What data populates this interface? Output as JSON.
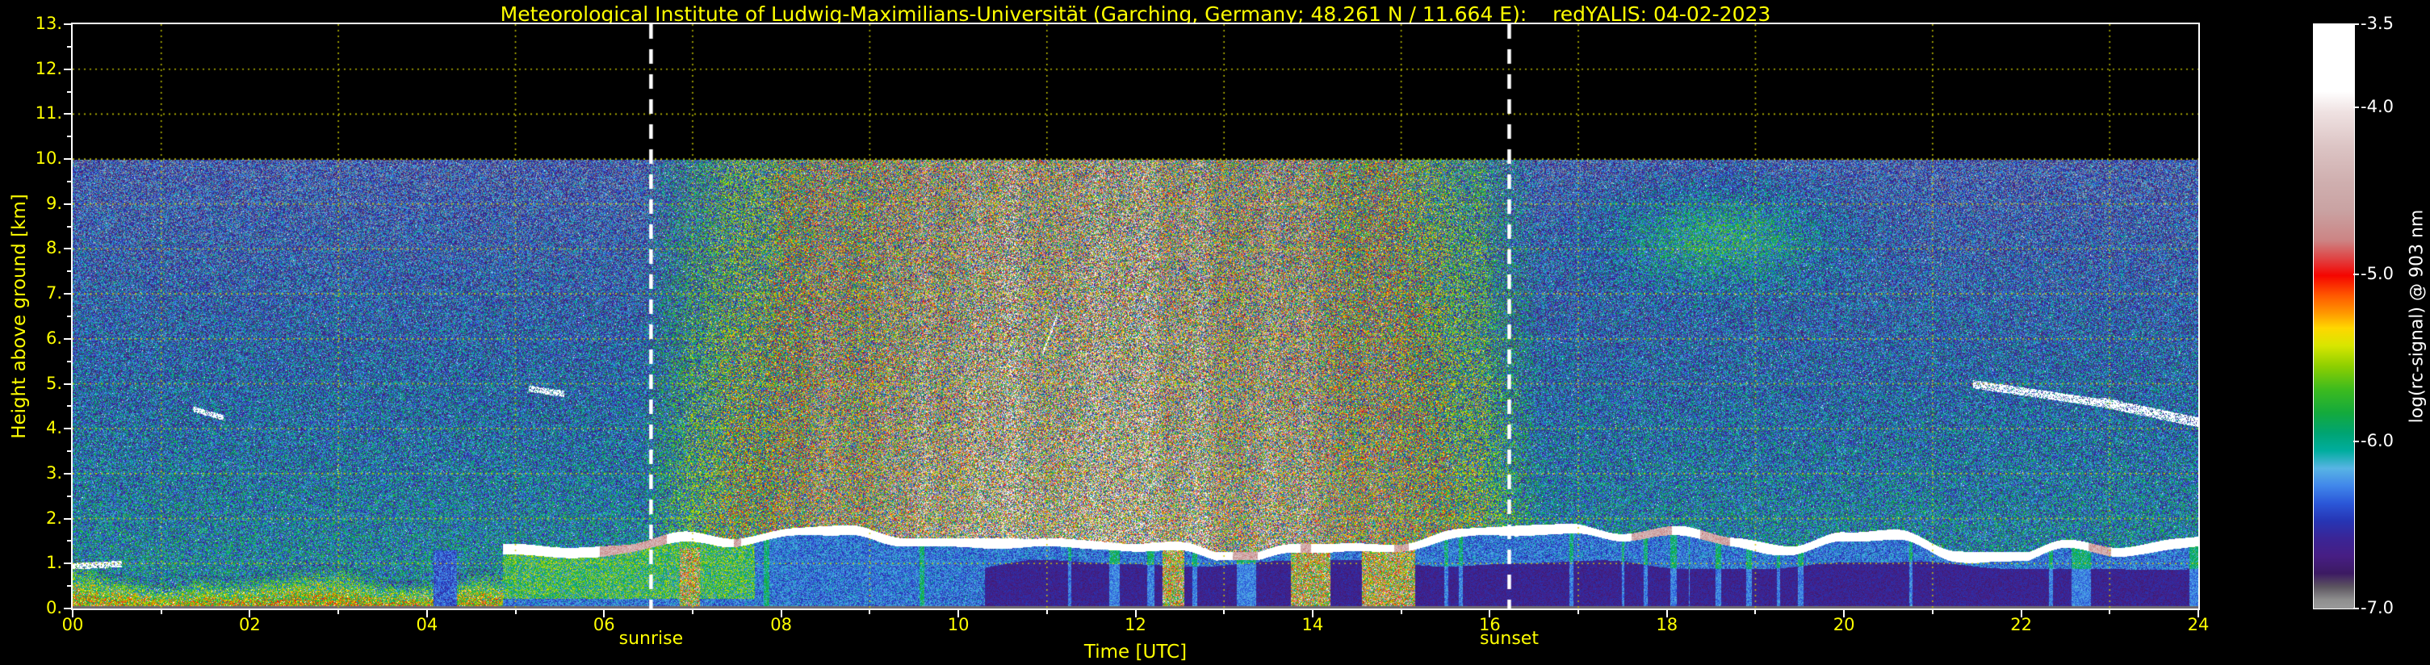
{
  "page": {
    "background": "#000000",
    "axis_color": "#ffffff",
    "label_color": "#ffff00"
  },
  "header": {
    "title": "Meteorological Institute of Ludwig-Maximilians-Universität (Garching, Germany; 48.261 N / 11.664 E):    redYALIS: 04-02-2023"
  },
  "chart_data": {
    "type": "heatmap",
    "title": "Meteorological Institute of Ludwig-Maximilians-Universität (Garching, Germany; 48.261 N / 11.664 E):    redYALIS: 04-02-2023",
    "xlabel": "Time [UTC]",
    "ylabel": "Height above ground [km]",
    "xlim": [
      0,
      24
    ],
    "ylim": [
      0,
      13
    ],
    "data_top_km": 10,
    "x_tick_hours": [
      0,
      2,
      4,
      6,
      8,
      10,
      12,
      14,
      16,
      18,
      20,
      22,
      24
    ],
    "x_tick_labels": [
      "00",
      "02",
      "04",
      "06",
      "08",
      "10",
      "12",
      "14",
      "16",
      "18",
      "20",
      "22",
      "24"
    ],
    "x_minor_tick_hours": [
      1,
      3,
      5,
      7,
      9,
      11,
      13,
      15,
      17,
      19,
      21,
      23
    ],
    "y_tick_values": [
      0,
      1,
      2,
      3,
      4,
      5,
      6,
      7,
      8,
      9,
      10,
      11,
      12,
      13
    ],
    "y_tick_labels": [
      "0.",
      "1.",
      "2.",
      "3.",
      "4.",
      "5.",
      "6.",
      "7.",
      "8.",
      "9.",
      "10.",
      "11.",
      "12.",
      "13."
    ],
    "grid": {
      "color": "#cccc00",
      "style": "dashed",
      "x_hours": [
        1,
        3,
        5,
        7,
        9,
        11,
        13,
        15,
        17,
        19,
        21,
        23
      ],
      "y_km": [
        1,
        2,
        3,
        4,
        5,
        6,
        7,
        8,
        9,
        10,
        11,
        12
      ]
    },
    "annotations": [
      {
        "label": "sunrise",
        "hour": 6.53,
        "style": "dashed",
        "color": "#ffffff"
      },
      {
        "label": "sunset",
        "hour": 16.22,
        "style": "dashed",
        "color": "#ffffff"
      }
    ],
    "colorbar": {
      "label": "log(rc-signal) @ 903 nm",
      "max": -3.5,
      "min": -7.0,
      "tick_values": [
        -3.5,
        -4.0,
        -5.0,
        -6.0,
        -7.0
      ],
      "tick_labels": [
        "-3.5",
        "-4.0",
        "-5.0",
        "-6.0",
        "-7.0"
      ],
      "stops": [
        [
          0.0,
          "#ffffff"
        ],
        [
          0.115,
          "#ffffff"
        ],
        [
          0.15,
          "#efe2e2"
        ],
        [
          0.21,
          "#dcc4c4"
        ],
        [
          0.27,
          "#cfafaf"
        ],
        [
          0.32,
          "#c9a2a2"
        ],
        [
          0.37,
          "#cc8484"
        ],
        [
          0.405,
          "#e23b3b"
        ],
        [
          0.43,
          "#f50500"
        ],
        [
          0.465,
          "#ff5a00"
        ],
        [
          0.495,
          "#ff9900"
        ],
        [
          0.52,
          "#ffd700"
        ],
        [
          0.55,
          "#d8e600"
        ],
        [
          0.585,
          "#8ecf00"
        ],
        [
          0.625,
          "#3dbb1e"
        ],
        [
          0.665,
          "#14aa3c"
        ],
        [
          0.7,
          "#00a472"
        ],
        [
          0.73,
          "#00ad9e"
        ],
        [
          0.76,
          "#58b4e4"
        ],
        [
          0.79,
          "#4187ea"
        ],
        [
          0.82,
          "#2b57d8"
        ],
        [
          0.85,
          "#2635b4"
        ],
        [
          0.88,
          "#3a2596"
        ],
        [
          0.91,
          "#471e84"
        ],
        [
          0.94,
          "#3c1a62"
        ],
        [
          0.963,
          "#5c5560"
        ],
        [
          0.985,
          "#8e8e8e"
        ],
        [
          1.0,
          "#9b9b9b"
        ]
      ]
    },
    "features": [
      "Speckled lidar background noise fills 0-10 km; no data (black) above 10 km",
      "Strong daytime solar background noise between sunrise (~06:30 UTC) and sunset (~16:15 UTC) appearing as red/brown/pink/white speckle",
      "Green aerosol plumes below ~1.5 km between 00 and 05 UTC with bright white echoes near the ground",
      "Persistent boundary-layer cloud top as a bright white wavy line near 1.3-2.0 km from ~05 UTC to 24 UTC",
      "Blue low-signal region below the cloud layer; purple near-ground band after ~10:30 UTC",
      "Thin descending white cloud streak from ~5.0 km at 21:30 UTC to ~4.1 km at 24:00 UTC",
      "Short bright streaks near 5 km around 05:20 UTC and a vertical streak to ~6.5 km near 11:00 UTC",
      "Faint orange speckle cluster near 8-9 km around 18-19 UTC"
    ],
    "render_params": {
      "cloud_start_hour": 4.85,
      "green_under_until": 7.7,
      "purple_start_hour": 10.3,
      "gap_interval": [
        1.85,
        4.7
      ],
      "precip_intervals": [
        [
          6.85,
          7.08
        ],
        [
          12.3,
          12.55
        ],
        [
          13.75,
          14.2
        ],
        [
          14.55,
          15.15
        ]
      ],
      "streaks": [
        [
          0.0,
          0.95,
          0.55,
          1.0,
          0.07
        ],
        [
          1.35,
          4.45,
          1.7,
          4.25,
          0.06
        ],
        [
          5.15,
          4.9,
          5.55,
          4.78,
          0.07
        ],
        [
          10.95,
          5.7,
          11.12,
          6.55,
          0.06
        ],
        [
          21.45,
          5.0,
          23.0,
          4.55,
          0.09
        ],
        [
          22.9,
          4.6,
          24.0,
          4.15,
          0.11
        ]
      ],
      "orange_cluster": [
        18.6,
        8.3,
        0.5
      ]
    }
  }
}
